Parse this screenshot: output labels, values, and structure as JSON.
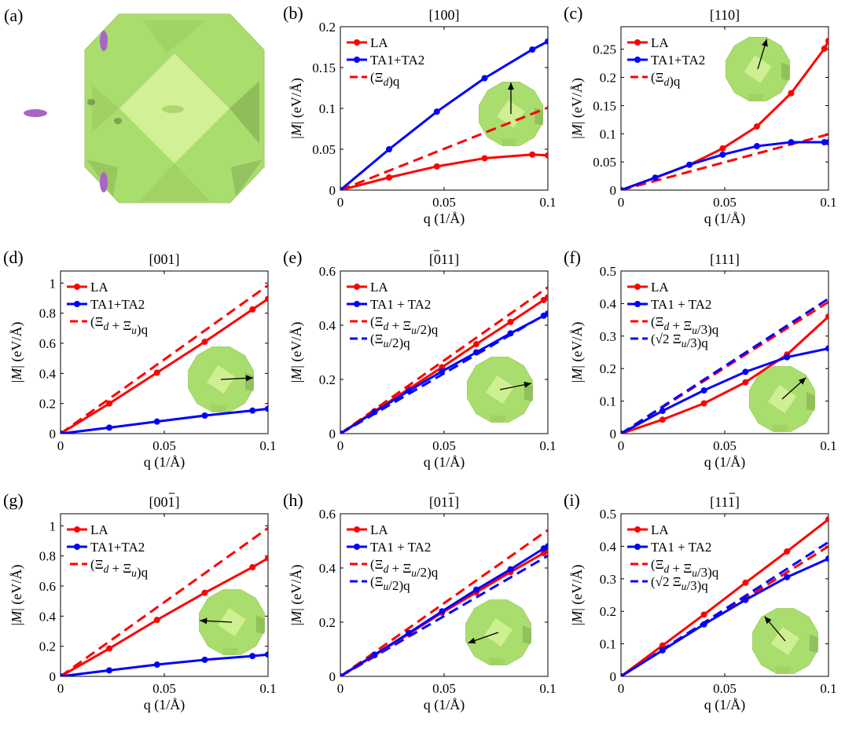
{
  "panel_a": {
    "label": "(a)",
    "colors": {
      "solid": "#a9dd6d",
      "light": "#d6f29a",
      "mid": "#9ccc5e",
      "dark": "#7fa84f",
      "pocket": "#a765c6"
    }
  },
  "chart_data": [
    {
      "id": "b",
      "label": "(b)",
      "type": "line",
      "title": "[100]",
      "xlabel": "q (1/Å)",
      "ylabel": "|M| (eV/Å)",
      "xlim": [
        0,
        0.1
      ],
      "ylim": [
        0,
        0.2
      ],
      "xticks": [
        0,
        0.05,
        0.1
      ],
      "xticklabels": [
        "0",
        "0.05",
        "0.1"
      ],
      "yticks": [
        0,
        0.05,
        0.1,
        0.15,
        0.2
      ],
      "yticklabels": [
        "0",
        "0.05",
        "0.1",
        "0.15",
        "0.2"
      ],
      "legend": "top-left",
      "series": [
        {
          "name": "LA",
          "color": "#ff0000",
          "style": "solid",
          "marker": true,
          "x": [
            0,
            0.0235,
            0.0465,
            0.0695,
            0.0925,
            0.1
          ],
          "y": [
            0,
            0.0155,
            0.029,
            0.039,
            0.0435,
            0.0425
          ]
        },
        {
          "name": "TA1+TA2",
          "color": "#0000ff",
          "style": "solid",
          "marker": true,
          "x": [
            0,
            0.0235,
            0.0465,
            0.0695,
            0.0925,
            0.1
          ],
          "y": [
            0,
            0.05,
            0.096,
            0.137,
            0.172,
            0.182
          ]
        },
        {
          "name": "(Ξd)q",
          "color": "#ff0000",
          "style": "dashed",
          "marker": false,
          "x": [
            0,
            0.1
          ],
          "y": [
            0,
            0.101
          ]
        }
      ],
      "inset": {
        "arrow": [
          0,
          1
        ]
      }
    },
    {
      "id": "c",
      "label": "(c)",
      "type": "line",
      "title": "[110]",
      "xlabel": "q (1/Å)",
      "ylabel": "|M| (eV/Å)",
      "xlim": [
        0,
        0.1
      ],
      "ylim": [
        0,
        0.29
      ],
      "xticks": [
        0,
        0.05,
        0.1
      ],
      "xticklabels": [
        "0",
        "0.05",
        "0.1"
      ],
      "yticks": [
        0,
        0.05,
        0.1,
        0.15,
        0.2,
        0.25
      ],
      "yticklabels": [
        "0",
        "0.05",
        "0.1",
        "0.15",
        "0.2",
        "0.25"
      ],
      "legend": "top-left",
      "series": [
        {
          "name": "LA",
          "color": "#ff0000",
          "style": "solid",
          "marker": true,
          "x": [
            0,
            0.0165,
            0.033,
            0.049,
            0.0655,
            0.082,
            0.098,
            0.1
          ],
          "y": [
            0,
            0.022,
            0.045,
            0.074,
            0.113,
            0.172,
            0.251,
            0.265
          ]
        },
        {
          "name": "TA1+TA2",
          "color": "#0000ff",
          "style": "solid",
          "marker": true,
          "x": [
            0,
            0.0165,
            0.033,
            0.049,
            0.0655,
            0.082,
            0.098,
            0.1
          ],
          "y": [
            0,
            0.022,
            0.045,
            0.063,
            0.078,
            0.085,
            0.085,
            0.085
          ]
        },
        {
          "name": "(Ξd)q",
          "color": "#ff0000",
          "style": "dashed",
          "marker": false,
          "x": [
            0,
            0.1
          ],
          "y": [
            0,
            0.099
          ]
        }
      ],
      "inset": {
        "arrow": [
          0.3,
          1
        ]
      }
    },
    {
      "id": "d",
      "label": "(d)",
      "type": "line",
      "title": "[001]",
      "xlabel": "q (1/Å)",
      "ylabel": "|M| (eV/Å)",
      "xlim": [
        0,
        0.1
      ],
      "ylim": [
        0,
        1.08
      ],
      "xticks": [
        0,
        0.05,
        0.1
      ],
      "xticklabels": [
        "0",
        "0.05",
        "0.1"
      ],
      "yticks": [
        0,
        0.2,
        0.4,
        0.6,
        0.8,
        1
      ],
      "yticklabels": [
        "0",
        "0.2",
        "0.4",
        "0.6",
        "0.8",
        "1"
      ],
      "legend": "top-left",
      "series": [
        {
          "name": "LA",
          "color": "#ff0000",
          "style": "solid",
          "marker": true,
          "x": [
            0,
            0.0235,
            0.0465,
            0.0695,
            0.0925,
            0.1
          ],
          "y": [
            0,
            0.2,
            0.405,
            0.61,
            0.825,
            0.895
          ]
        },
        {
          "name": "TA1+TA2",
          "color": "#0000ff",
          "style": "solid",
          "marker": true,
          "x": [
            0,
            0.0235,
            0.0465,
            0.0695,
            0.0925,
            0.1
          ],
          "y": [
            0,
            0.04,
            0.08,
            0.12,
            0.153,
            0.165
          ]
        },
        {
          "name": "(Ξd + Ξu)q",
          "color": "#ff0000",
          "style": "dashed",
          "marker": false,
          "x": [
            0,
            0.1
          ],
          "y": [
            0,
            0.985
          ]
        }
      ],
      "inset": {
        "arrow": [
          1,
          0.05
        ]
      }
    },
    {
      "id": "e",
      "label": "(e)",
      "type": "line",
      "title": "[011]",
      "xlabel": "q (1/Å)",
      "ylabel": "|M| (eV/Å)",
      "xlim": [
        0,
        0.1
      ],
      "ylim": [
        0,
        0.6
      ],
      "xticks": [
        0,
        0.05,
        0.1
      ],
      "xticklabels": [
        "0",
        "0.05",
        "0.1"
      ],
      "yticks": [
        0,
        0.2,
        0.4,
        0.6
      ],
      "yticklabels": [
        "0",
        "0.2",
        "0.4",
        "0.6"
      ],
      "legend": "top-left",
      "series": [
        {
          "name": "LA",
          "color": "#ff0000",
          "style": "solid",
          "marker": true,
          "x": [
            0,
            0.0165,
            0.033,
            0.049,
            0.0655,
            0.082,
            0.098,
            0.1
          ],
          "y": [
            0,
            0.083,
            0.165,
            0.245,
            0.33,
            0.412,
            0.493,
            0.503
          ]
        },
        {
          "name": "TA1 + TA2",
          "color": "#0000ff",
          "style": "solid",
          "marker": true,
          "x": [
            0,
            0.0165,
            0.033,
            0.049,
            0.0655,
            0.082,
            0.098,
            0.1
          ],
          "y": [
            0,
            0.08,
            0.158,
            0.23,
            0.3,
            0.37,
            0.435,
            0.443
          ]
        },
        {
          "name": "(Ξd + Ξu/2)q",
          "color": "#ff0000",
          "style": "dashed",
          "marker": false,
          "x": [
            0,
            0.1
          ],
          "y": [
            0,
            0.54
          ]
        },
        {
          "name": "(Ξu/2)q",
          "color": "#0000ff",
          "style": "dashed",
          "marker": false,
          "x": [
            0,
            0.1
          ],
          "y": [
            0,
            0.445
          ]
        }
      ],
      "inset": {
        "arrow": [
          1,
          0.2
        ]
      }
    },
    {
      "id": "f",
      "label": "(f)",
      "type": "line",
      "title": "[111]",
      "xlabel": "q (1/Å)",
      "ylabel": "|M| (eV/Å)",
      "xlim": [
        0,
        0.1
      ],
      "ylim": [
        0,
        0.5
      ],
      "xticks": [
        0,
        0.05,
        0.1
      ],
      "xticklabels": [
        "0",
        "0.05",
        "0.1"
      ],
      "yticks": [
        0,
        0.1,
        0.2,
        0.3,
        0.4,
        0.5
      ],
      "yticklabels": [
        "0",
        "0.1",
        "0.2",
        "0.3",
        "0.4",
        "0.5"
      ],
      "legend": "top-left",
      "series": [
        {
          "name": "LA",
          "color": "#ff0000",
          "style": "solid",
          "marker": true,
          "x": [
            0,
            0.02,
            0.04,
            0.06,
            0.08,
            0.1
          ],
          "y": [
            0,
            0.043,
            0.093,
            0.158,
            0.243,
            0.36
          ]
        },
        {
          "name": "TA1 + TA2",
          "color": "#0000ff",
          "style": "solid",
          "marker": true,
          "x": [
            0,
            0.02,
            0.04,
            0.06,
            0.08,
            0.1
          ],
          "y": [
            0,
            0.07,
            0.133,
            0.19,
            0.235,
            0.262
          ]
        },
        {
          "name": "(Ξd + Ξu/3)q",
          "color": "#ff0000",
          "style": "dashed",
          "marker": false,
          "x": [
            0,
            0.1
          ],
          "y": [
            0,
            0.405
          ]
        },
        {
          "name": "(√2 Ξu/3)q",
          "color": "#0000ff",
          "style": "dashed",
          "marker": false,
          "x": [
            0,
            0.1
          ],
          "y": [
            0,
            0.415
          ]
        }
      ],
      "inset": {
        "arrow": [
          1,
          0.9
        ]
      }
    },
    {
      "id": "g",
      "label": "(g)",
      "type": "line",
      "title": "[001]",
      "xlabel": "q (1/Å)",
      "ylabel": "|M| (eV/Å)",
      "xlim": [
        0,
        0.1
      ],
      "ylim": [
        0,
        1.08
      ],
      "xticks": [
        0,
        0.05,
        0.1
      ],
      "xticklabels": [
        "0",
        "0.05",
        "0.1"
      ],
      "yticks": [
        0,
        0.2,
        0.4,
        0.6,
        0.8,
        1
      ],
      "yticklabels": [
        "0",
        "0.2",
        "0.4",
        "0.6",
        "0.8",
        "1"
      ],
      "legend": "top-left",
      "series": [
        {
          "name": "LA",
          "color": "#ff0000",
          "style": "solid",
          "marker": true,
          "x": [
            0,
            0.0235,
            0.0465,
            0.0695,
            0.0925,
            0.1
          ],
          "y": [
            0,
            0.185,
            0.375,
            0.555,
            0.725,
            0.785
          ]
        },
        {
          "name": "TA1+TA2",
          "color": "#0000ff",
          "style": "solid",
          "marker": true,
          "x": [
            0,
            0.0235,
            0.0465,
            0.0695,
            0.0925,
            0.1
          ],
          "y": [
            0,
            0.04,
            0.078,
            0.11,
            0.135,
            0.145
          ]
        },
        {
          "name": "(Ξd + Ξu)q",
          "color": "#ff0000",
          "style": "dashed",
          "marker": false,
          "x": [
            0,
            0.1
          ],
          "y": [
            0,
            0.985
          ]
        }
      ],
      "inset": {
        "arrow": [
          -1,
          0.05
        ]
      }
    },
    {
      "id": "h",
      "label": "(h)",
      "type": "line",
      "title": "[011]",
      "xlabel": "q (1/Å)",
      "ylabel": "|M| (eV/Å)",
      "xlim": [
        0,
        0.1
      ],
      "ylim": [
        0,
        0.6
      ],
      "xticks": [
        0,
        0.05,
        0.1
      ],
      "xticklabels": [
        "0",
        "0.05",
        "0.1"
      ],
      "yticks": [
        0,
        0.2,
        0.4,
        0.6
      ],
      "yticklabels": [
        "0",
        "0.2",
        "0.4",
        "0.6"
      ],
      "legend": "top-left",
      "series": [
        {
          "name": "LA",
          "color": "#ff0000",
          "style": "solid",
          "marker": true,
          "x": [
            0,
            0.0165,
            0.033,
            0.049,
            0.0655,
            0.082,
            0.098,
            0.1
          ],
          "y": [
            0,
            0.078,
            0.157,
            0.235,
            0.31,
            0.385,
            0.455,
            0.463
          ]
        },
        {
          "name": "TA1 + TA2",
          "color": "#0000ff",
          "style": "solid",
          "marker": true,
          "x": [
            0,
            0.0165,
            0.033,
            0.049,
            0.0655,
            0.082,
            0.098,
            0.1
          ],
          "y": [
            0,
            0.08,
            0.16,
            0.24,
            0.32,
            0.395,
            0.472,
            0.48
          ]
        },
        {
          "name": "(Ξd + Ξu/2)q",
          "color": "#ff0000",
          "style": "dashed",
          "marker": false,
          "x": [
            0,
            0.1
          ],
          "y": [
            0,
            0.54
          ]
        },
        {
          "name": "(Ξu/2)q",
          "color": "#0000ff",
          "style": "dashed",
          "marker": false,
          "x": [
            0,
            0.1
          ],
          "y": [
            0,
            0.445
          ]
        }
      ],
      "inset": {
        "arrow": [
          -1,
          -0.35
        ]
      }
    },
    {
      "id": "i",
      "label": "(i)",
      "type": "line",
      "title": "[111]",
      "xlabel": "q (1/Å)",
      "ylabel": "|M| (eV/Å)",
      "xlim": [
        0,
        0.1
      ],
      "ylim": [
        0,
        0.5
      ],
      "xticks": [
        0,
        0.05,
        0.1
      ],
      "xticklabels": [
        "0",
        "0.05",
        "0.1"
      ],
      "yticks": [
        0,
        0.1,
        0.2,
        0.3,
        0.4,
        0.5
      ],
      "yticklabels": [
        "0",
        "0.1",
        "0.2",
        "0.3",
        "0.4",
        "0.5"
      ],
      "legend": "top-left",
      "series": [
        {
          "name": "LA",
          "color": "#ff0000",
          "style": "solid",
          "marker": true,
          "x": [
            0,
            0.02,
            0.04,
            0.06,
            0.08,
            0.1
          ],
          "y": [
            0,
            0.095,
            0.19,
            0.288,
            0.384,
            0.483
          ]
        },
        {
          "name": "TA1 + TA2",
          "color": "#0000ff",
          "style": "solid",
          "marker": true,
          "x": [
            0,
            0.02,
            0.04,
            0.06,
            0.08,
            0.1
          ],
          "y": [
            0,
            0.08,
            0.16,
            0.235,
            0.305,
            0.362
          ]
        },
        {
          "name": "(Ξd + Ξu/3)q",
          "color": "#ff0000",
          "style": "dashed",
          "marker": false,
          "x": [
            0,
            0.1
          ],
          "y": [
            0,
            0.4
          ]
        },
        {
          "name": "(√2 Ξu/3)q",
          "color": "#0000ff",
          "style": "dashed",
          "marker": false,
          "x": [
            0,
            0.1
          ],
          "y": [
            0,
            0.413
          ]
        }
      ],
      "inset": {
        "arrow": [
          -0.8,
          0.95
        ]
      }
    }
  ]
}
